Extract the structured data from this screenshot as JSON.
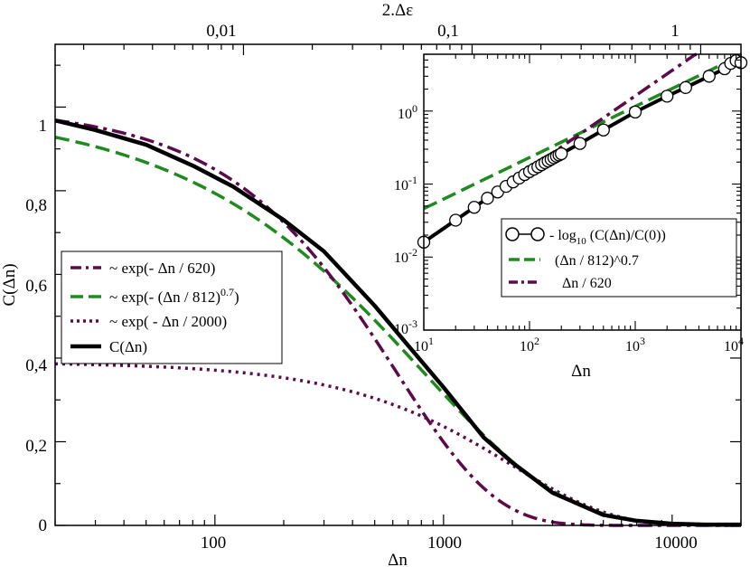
{
  "chart_data": [
    {
      "type": "line",
      "id": "main",
      "xscale": "log",
      "xlabel": "Δn",
      "ylabel": "C(Δn)",
      "top_axis_label": "2.Δε",
      "xlim": [
        20,
        20000
      ],
      "ylim": [
        0,
        1.15
      ],
      "x_ticks": [
        100,
        1000,
        10000
      ],
      "x_tick_labels": [
        "100",
        "1000",
        "10000"
      ],
      "y_ticks": [
        0,
        0.2,
        0.4,
        0.6,
        0.8,
        1
      ],
      "y_tick_labels": [
        "0",
        "0,2",
        "0,4",
        "0,6",
        "0,8",
        "1"
      ],
      "top_ticks": [
        0.01,
        0.1,
        1
      ],
      "top_tick_labels": [
        "0,01",
        "0,1",
        "1"
      ],
      "top_scale_factor": 0.00075,
      "legend_position": "middle-left",
      "series": [
        {
          "name": "exp1",
          "label": "~ exp(- Δn / 620)",
          "style": "dash-dot",
          "color": "#5c0a4a",
          "formula": "exp",
          "tau": 620,
          "beta": 1,
          "amp": 1
        },
        {
          "name": "stretched",
          "label_main": "~ exp(- (Δn / 812)",
          "label_sup": "0.7",
          "label_tail": ")",
          "style": "dash",
          "color": "#1f8a1f",
          "formula": "stretched",
          "tau": 812,
          "beta": 0.7,
          "amp": 1
        },
        {
          "name": "exp2",
          "label": "~ exp( - Δn / 2000)",
          "style": "dot",
          "color": "#5c0a4a",
          "formula": "exp",
          "tau": 2000,
          "beta": 1,
          "amp": 0.39
        },
        {
          "name": "data",
          "label": "C(Δn)",
          "style": "solid",
          "color": "#000000",
          "x": [
            20,
            30,
            50,
            80,
            120,
            200,
            300,
            500,
            700,
            1000,
            1500,
            2000,
            3000,
            5000,
            7000,
            10000,
            14000,
            18000,
            20000
          ],
          "y": [
            0.968,
            0.945,
            0.91,
            0.86,
            0.81,
            0.73,
            0.655,
            0.525,
            0.43,
            0.33,
            0.21,
            0.15,
            0.078,
            0.025,
            0.011,
            0.004,
            0.002,
            0.002,
            0.002
          ]
        }
      ]
    },
    {
      "type": "line",
      "id": "inset",
      "xscale": "log",
      "yscale": "log",
      "xlabel": "Δn",
      "xlim": [
        10,
        10000
      ],
      "ylim": [
        0.001,
        6
      ],
      "x_ticks": [
        10,
        100,
        1000,
        10000
      ],
      "x_tick_labels": [
        {
          "base": "10",
          "exp": "1"
        },
        {
          "base": "10",
          "exp": "2"
        },
        {
          "base": "10",
          "exp": "3"
        },
        {
          "base": "10",
          "exp": "4"
        }
      ],
      "y_ticks": [
        0.001,
        0.01,
        0.1,
        1
      ],
      "y_tick_labels": [
        {
          "base": "10",
          "exp": "-3"
        },
        {
          "base": "10",
          "exp": "-2"
        },
        {
          "base": "10",
          "exp": "-1"
        },
        {
          "base": "10",
          "exp": "0"
        }
      ],
      "legend_position": "middle-right",
      "series": [
        {
          "name": "log-data",
          "label_pre": "- log",
          "label_sub": "10",
          "label_post": " (C(Δn)/C(0))",
          "style": "solid-circles",
          "color": "#000000",
          "x": [
            10,
            20,
            30,
            40,
            50,
            60,
            70,
            80,
            90,
            100,
            110,
            120,
            130,
            140,
            150,
            160,
            170,
            180,
            190,
            200,
            300,
            500,
            1000,
            2000,
            3000,
            5000,
            7000,
            8000,
            9000,
            10000
          ],
          "y": [
            0.016,
            0.032,
            0.048,
            0.064,
            0.078,
            0.093,
            0.107,
            0.121,
            0.135,
            0.148,
            0.16,
            0.172,
            0.184,
            0.196,
            0.207,
            0.218,
            0.229,
            0.24,
            0.25,
            0.26,
            0.36,
            0.55,
            0.97,
            1.6,
            2.1,
            3.0,
            3.8,
            4.5,
            4.9,
            4.6
          ]
        },
        {
          "name": "power",
          "label": "(Δn / 812)^0.7",
          "style": "dash",
          "color": "#1f8a1f",
          "formula": "power",
          "tau": 812,
          "beta": 0.7
        },
        {
          "name": "linear",
          "label": "Δn / 620",
          "style": "dash-dot",
          "color": "#5c0a4a",
          "formula": "power",
          "tau": 620,
          "beta": 1
        }
      ]
    }
  ]
}
